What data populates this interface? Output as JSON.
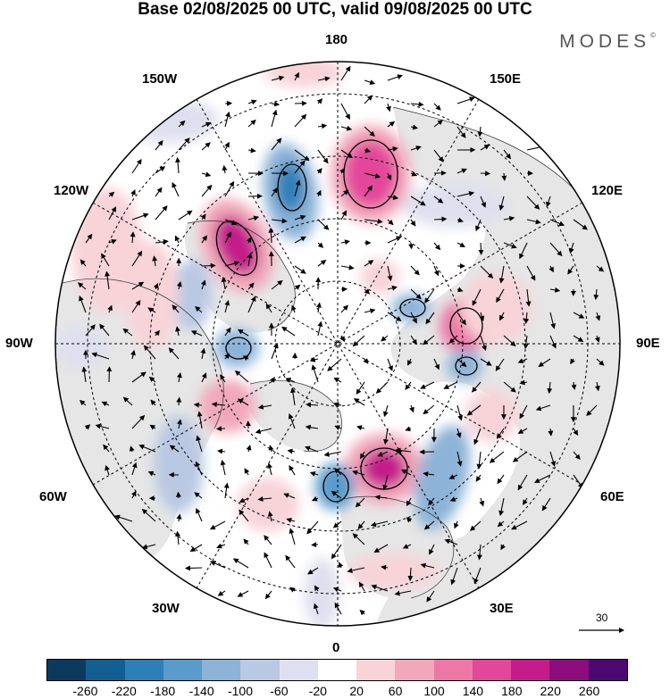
{
  "title": "Base 02/08/2025 00 UTC, valid 09/08/2025 00 UTC",
  "brand": "MODES",
  "brand_mark": "©",
  "longitude_labels": {
    "top": "180",
    "bottom": "0",
    "left": "90W",
    "right": "90E",
    "upper_left_1": "150W",
    "upper_left_2": "120W",
    "upper_right_1": "150E",
    "upper_right_2": "120E",
    "lower_left_1": "60W",
    "lower_left_2": "30W",
    "lower_right_1": "60E",
    "lower_right_2": "30E"
  },
  "vector_scale": {
    "label": "30"
  },
  "colorbar": {
    "colors": [
      "#0c3a5e",
      "#135f91",
      "#2f7fb7",
      "#5a9bcb",
      "#8db3d8",
      "#b9c8e3",
      "#dfe0ef",
      "#ffffff",
      "#f8d3d8",
      "#f2a8bb",
      "#ec78a6",
      "#e3479a",
      "#c41d8b",
      "#8c0e7e",
      "#4d0770"
    ],
    "tick_labels": [
      "-260",
      "-220",
      "-180",
      "-140",
      "-100",
      "-60",
      "-20",
      "20",
      "60",
      "100",
      "140",
      "180",
      "220",
      "260"
    ]
  }
}
